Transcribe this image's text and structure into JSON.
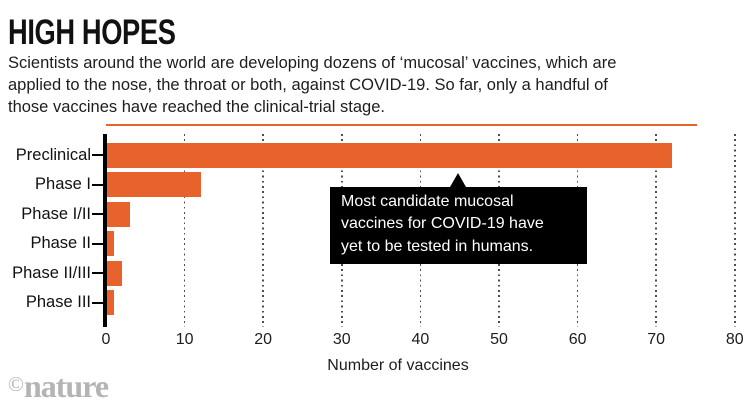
{
  "header": {
    "title": "HIGH HOPES",
    "subtitle": "Scientists around the world are developing dozens of ‘mucosal’ vaccines, which are\napplied to the nose, the throat or both, against COVID-19. So far, only a handful of\nthose vaccines have reached the clinical-trial stage."
  },
  "chart_data": {
    "type": "bar",
    "orientation": "horizontal",
    "categories": [
      "Preclinical",
      "Phase I",
      "Phase I/II",
      "Phase II",
      "Phase II/III",
      "Phase III"
    ],
    "values": [
      72,
      12,
      3,
      1,
      2,
      1
    ],
    "xlabel": "Number of vaccines",
    "xlim": [
      0,
      80
    ],
    "xticks": [
      0,
      10,
      20,
      30,
      40,
      50,
      60,
      70,
      80
    ],
    "grid": "vertical-dotted",
    "legend": "none",
    "bar_color": "#e8632c",
    "annotation": {
      "text": "Most candidate mucosal\nvaccines for COVID-19 have\nyet to be tested in humans.",
      "bg": "#000000",
      "fg": "#ffffff",
      "arrow_direction": "up"
    }
  },
  "footer": {
    "copyright_symbol": "©",
    "logo_text": "nature",
    "logo_color": "#b4b4b4"
  }
}
